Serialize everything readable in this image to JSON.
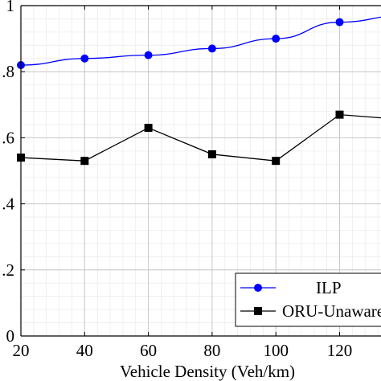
{
  "chart_data": {
    "type": "line",
    "title": "",
    "xlabel": "Vehicle Density (Veh/km)",
    "ylabel": "",
    "x": [
      20,
      40,
      60,
      80,
      100,
      120,
      140
    ],
    "xlim": [
      20,
      140
    ],
    "ylim": [
      0,
      1
    ],
    "x_ticks": [
      20,
      40,
      60,
      80,
      100,
      120
    ],
    "x_tick_labels": [
      "20",
      "40",
      "60",
      "80",
      "100",
      "120"
    ],
    "y_ticks": [
      0,
      0.2,
      0.4,
      0.6,
      0.8,
      1
    ],
    "y_tick_labels": [
      "0",
      ".2",
      ".4",
      ".6",
      ".8",
      "1"
    ],
    "grid": true,
    "legend_position": "bottom-right",
    "series": [
      {
        "name": "ILP",
        "values": [
          0.82,
          0.84,
          0.85,
          0.87,
          0.9,
          0.95,
          0.97
        ],
        "color": "#0000ff",
        "marker": "circle"
      },
      {
        "name": "ORU-Unaware",
        "values": [
          0.54,
          0.53,
          0.63,
          0.55,
          0.53,
          0.67,
          0.655
        ],
        "color": "#000000",
        "marker": "square"
      }
    ]
  }
}
